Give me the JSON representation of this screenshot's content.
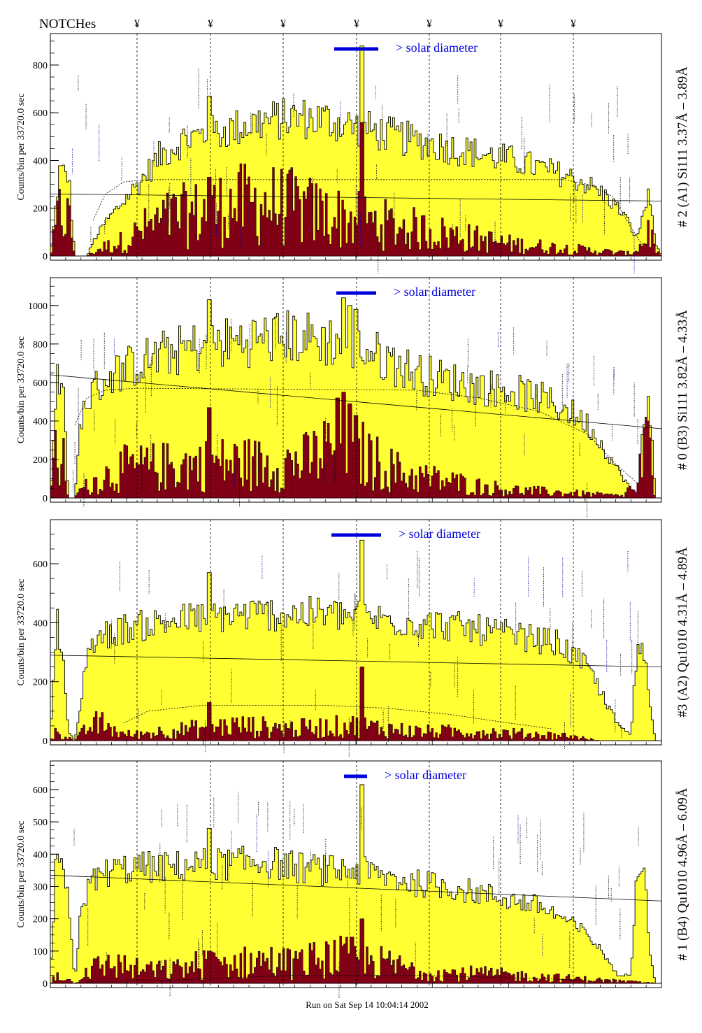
{
  "header": {
    "notches_label": "NOTCHes",
    "notch_glyph": "¥"
  },
  "footer": {
    "run_text": "Run on Sat Sep 14 10:04:14 2002"
  },
  "colors": {
    "fill_total": "#ffff33",
    "fill_sub": "#800015",
    "solar_bar": "#0000dd",
    "annotation_blue": "#0000aa",
    "annotation_purple": "#7a1070"
  },
  "chart_data": [
    {
      "type": "area",
      "side_label": "# 2 (A1) Si111  3.37Å – 3.89Å",
      "ylabel": "Counts/bin per  33720.0 sec",
      "solar_label": "> solar diameter",
      "yticks": [
        0,
        200,
        400,
        600,
        800
      ],
      "ylim": [
        0,
        920
      ],
      "envelope": [
        [
          0,
          0
        ],
        [
          1.5,
          355
        ],
        [
          3,
          340
        ],
        [
          4,
          0
        ],
        [
          6,
          0
        ],
        [
          7,
          60
        ],
        [
          9,
          140
        ],
        [
          12,
          230
        ],
        [
          15,
          320
        ],
        [
          18,
          420
        ],
        [
          22,
          490
        ],
        [
          28,
          520
        ],
        [
          34,
          560
        ],
        [
          40,
          580
        ],
        [
          45,
          570
        ],
        [
          50,
          540
        ],
        [
          55,
          510
        ],
        [
          60,
          480
        ],
        [
          64,
          460
        ],
        [
          68,
          440
        ],
        [
          72,
          420
        ],
        [
          76,
          400
        ],
        [
          80,
          370
        ],
        [
          84,
          340
        ],
        [
          88,
          300
        ],
        [
          91,
          250
        ],
        [
          94,
          170
        ],
        [
          96,
          70
        ],
        [
          97,
          180
        ],
        [
          98,
          260
        ],
        [
          99,
          60
        ],
        [
          100,
          0
        ]
      ],
      "sub_envelope": [
        [
          0,
          0
        ],
        [
          1.5,
          180
        ],
        [
          3,
          160
        ],
        [
          4,
          0
        ],
        [
          6,
          0
        ],
        [
          8,
          30
        ],
        [
          12,
          60
        ],
        [
          16,
          120
        ],
        [
          20,
          160
        ],
        [
          25,
          180
        ],
        [
          30,
          210
        ],
        [
          35,
          220
        ],
        [
          40,
          200
        ],
        [
          45,
          170
        ],
        [
          50,
          150
        ],
        [
          55,
          130
        ],
        [
          60,
          110
        ],
        [
          65,
          90
        ],
        [
          70,
          70
        ],
        [
          75,
          50
        ],
        [
          80,
          40
        ],
        [
          85,
          30
        ],
        [
          90,
          20
        ],
        [
          95,
          10
        ],
        [
          97,
          50
        ],
        [
          98,
          120
        ],
        [
          99,
          20
        ],
        [
          100,
          0
        ]
      ],
      "spikes_total": [
        [
          26,
          670
        ],
        [
          51,
          880
        ]
      ],
      "spikes_sub": [
        [
          26,
          330
        ],
        [
          51,
          560
        ]
      ],
      "flat_line": [
        [
          0,
          260
        ],
        [
          100,
          230
        ]
      ],
      "dotted": [
        [
          7,
          150
        ],
        [
          9,
          260
        ],
        [
          12,
          310
        ],
        [
          16,
          320
        ],
        [
          84,
          320
        ],
        [
          88,
          300
        ],
        [
          92,
          250
        ],
        [
          95,
          120
        ],
        [
          97,
          40
        ]
      ],
      "spiky": 0.45
    },
    {
      "type": "area",
      "side_label": "# 0 (B3) Si111  3.82Å – 4.33Å",
      "ylabel": "Counts/bin per  33720.0 sec",
      "solar_label": "> solar diameter",
      "yticks": [
        0,
        200,
        400,
        600,
        800,
        1000
      ],
      "ylim": [
        0,
        1130
      ],
      "envelope": [
        [
          0,
          0
        ],
        [
          1,
          620
        ],
        [
          2,
          600
        ],
        [
          3,
          0
        ],
        [
          4,
          0
        ],
        [
          5,
          420
        ],
        [
          7,
          560
        ],
        [
          10,
          640
        ],
        [
          15,
          710
        ],
        [
          20,
          760
        ],
        [
          25,
          790
        ],
        [
          30,
          810
        ],
        [
          35,
          830
        ],
        [
          40,
          840
        ],
        [
          45,
          820
        ],
        [
          50,
          790
        ],
        [
          55,
          720
        ],
        [
          60,
          650
        ],
        [
          65,
          610
        ],
        [
          70,
          580
        ],
        [
          75,
          560
        ],
        [
          80,
          520
        ],
        [
          85,
          450
        ],
        [
          88,
          380
        ],
        [
          91,
          240
        ],
        [
          93,
          140
        ],
        [
          95,
          50
        ],
        [
          96,
          20
        ],
        [
          97,
          400
        ],
        [
          98,
          540
        ],
        [
          99,
          0
        ],
        [
          100,
          0
        ]
      ],
      "sub_envelope": [
        [
          0,
          0
        ],
        [
          1,
          330
        ],
        [
          2,
          250
        ],
        [
          3,
          0
        ],
        [
          5,
          40
        ],
        [
          8,
          100
        ],
        [
          12,
          150
        ],
        [
          18,
          160
        ],
        [
          24,
          170
        ],
        [
          30,
          180
        ],
        [
          36,
          170
        ],
        [
          42,
          190
        ],
        [
          48,
          300
        ],
        [
          52,
          200
        ],
        [
          58,
          120
        ],
        [
          64,
          90
        ],
        [
          70,
          60
        ],
        [
          76,
          40
        ],
        [
          82,
          30
        ],
        [
          88,
          20
        ],
        [
          94,
          10
        ],
        [
          97,
          200
        ],
        [
          98,
          300
        ],
        [
          99,
          0
        ],
        [
          100,
          0
        ]
      ],
      "spikes_total": [
        [
          26,
          1030
        ],
        [
          48,
          1040
        ],
        [
          49,
          1000
        ],
        [
          50,
          980
        ]
      ],
      "spikes_sub": [
        [
          26,
          470
        ],
        [
          47,
          520
        ],
        [
          48,
          550
        ],
        [
          49,
          490
        ],
        [
          50,
          430
        ]
      ],
      "flat_line": [
        [
          0,
          640
        ],
        [
          100,
          360
        ]
      ],
      "dotted": [
        [
          4,
          380
        ],
        [
          6,
          520
        ],
        [
          9,
          560
        ],
        [
          14,
          570
        ],
        [
          60,
          560
        ],
        [
          70,
          520
        ],
        [
          80,
          450
        ],
        [
          88,
          330
        ],
        [
          93,
          160
        ],
        [
          96,
          80
        ]
      ],
      "spiky": 0.5
    },
    {
      "type": "area",
      "side_label": "#3 (A2) Qu1010  4.31Å – 4.89Å",
      "ylabel": "Counts/bin per  33720.0 sec",
      "solar_label": "> solar diameter",
      "yticks": [
        0,
        200,
        400,
        600
      ],
      "ylim": [
        0,
        740
      ],
      "envelope": [
        [
          0,
          0
        ],
        [
          1,
          430
        ],
        [
          2,
          290
        ],
        [
          3,
          30
        ],
        [
          4,
          0
        ],
        [
          5,
          120
        ],
        [
          6,
          310
        ],
        [
          8,
          350
        ],
        [
          12,
          380
        ],
        [
          18,
          400
        ],
        [
          25,
          420
        ],
        [
          35,
          430
        ],
        [
          45,
          430
        ],
        [
          55,
          410
        ],
        [
          65,
          390
        ],
        [
          72,
          370
        ],
        [
          78,
          350
        ],
        [
          83,
          330
        ],
        [
          88,
          250
        ],
        [
          91,
          130
        ],
        [
          93,
          50
        ],
        [
          95,
          20
        ],
        [
          96,
          310
        ],
        [
          97,
          330
        ],
        [
          98,
          140
        ],
        [
          99,
          0
        ],
        [
          100,
          0
        ]
      ],
      "sub_envelope": [
        [
          0,
          0
        ],
        [
          1,
          30
        ],
        [
          2,
          20
        ],
        [
          4,
          0
        ],
        [
          6,
          40
        ],
        [
          8,
          60
        ],
        [
          10,
          40
        ],
        [
          12,
          20
        ],
        [
          14,
          20
        ],
        [
          18,
          30
        ],
        [
          24,
          40
        ],
        [
          30,
          50
        ],
        [
          40,
          40
        ],
        [
          50,
          50
        ],
        [
          60,
          30
        ],
        [
          70,
          30
        ],
        [
          80,
          20
        ],
        [
          85,
          15
        ],
        [
          90,
          0
        ],
        [
          100,
          0
        ]
      ],
      "spikes_total": [
        [
          26,
          570
        ],
        [
          51,
          680
        ]
      ],
      "spikes_sub": [
        [
          26,
          130
        ],
        [
          51,
          250
        ]
      ],
      "flat_line": [
        [
          0,
          290
        ],
        [
          100,
          250
        ]
      ],
      "dotted": [
        [
          12,
          60
        ],
        [
          16,
          100
        ],
        [
          25,
          120
        ],
        [
          35,
          120
        ],
        [
          45,
          120
        ],
        [
          55,
          110
        ],
        [
          65,
          90
        ],
        [
          75,
          60
        ],
        [
          82,
          40
        ]
      ],
      "spiky": 0.4
    },
    {
      "type": "area",
      "side_label": "# 1 (B4) Qu1010 4.96Å – 6.09Å",
      "ylabel": "Counts/bin per  33720.0 sec",
      "solar_label": "> solar diameter",
      "yticks": [
        0,
        100,
        200,
        300,
        400,
        500,
        600
      ],
      "ylim": [
        0,
        680
      ],
      "envelope": [
        [
          0,
          0
        ],
        [
          1,
          430
        ],
        [
          2,
          330
        ],
        [
          3,
          250
        ],
        [
          4,
          0
        ],
        [
          5,
          240
        ],
        [
          7,
          320
        ],
        [
          10,
          350
        ],
        [
          15,
          360
        ],
        [
          20,
          360
        ],
        [
          25,
          370
        ],
        [
          30,
          370
        ],
        [
          35,
          380
        ],
        [
          40,
          360
        ],
        [
          45,
          350
        ],
        [
          50,
          350
        ],
        [
          55,
          330
        ],
        [
          60,
          310
        ],
        [
          65,
          300
        ],
        [
          70,
          280
        ],
        [
          75,
          260
        ],
        [
          80,
          240
        ],
        [
          84,
          200
        ],
        [
          88,
          150
        ],
        [
          91,
          80
        ],
        [
          93,
          20
        ],
        [
          95,
          30
        ],
        [
          96,
          380
        ],
        [
          97,
          400
        ],
        [
          98,
          120
        ],
        [
          99,
          0
        ],
        [
          100,
          0
        ]
      ],
      "sub_envelope": [
        [
          0,
          0
        ],
        [
          1,
          30
        ],
        [
          2,
          20
        ],
        [
          4,
          0
        ],
        [
          6,
          40
        ],
        [
          10,
          60
        ],
        [
          15,
          40
        ],
        [
          20,
          40
        ],
        [
          25,
          60
        ],
        [
          30,
          60
        ],
        [
          35,
          70
        ],
        [
          40,
          60
        ],
        [
          45,
          80
        ],
        [
          50,
          80
        ],
        [
          55,
          60
        ],
        [
          60,
          40
        ],
        [
          65,
          30
        ],
        [
          70,
          30
        ],
        [
          80,
          20
        ],
        [
          90,
          10
        ],
        [
          100,
          0
        ]
      ],
      "spikes_total": [
        [
          26,
          480
        ],
        [
          51,
          615
        ]
      ],
      "spikes_sub": [
        [
          26,
          100
        ],
        [
          51,
          200
        ]
      ],
      "flat_line": [
        [
          0,
          335
        ],
        [
          100,
          255
        ]
      ],
      "dotted": [
        [
          6,
          5
        ],
        [
          20,
          10
        ],
        [
          40,
          25
        ],
        [
          60,
          25
        ],
        [
          80,
          15
        ],
        [
          92,
          5
        ]
      ],
      "spiky": 0.4
    }
  ]
}
